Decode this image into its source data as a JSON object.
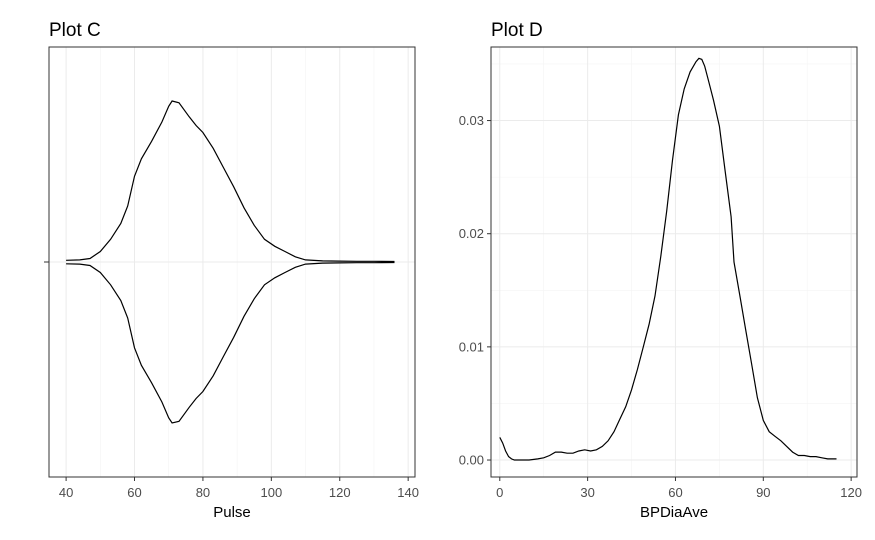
{
  "chart_data": [
    {
      "type": "violin",
      "title": "Plot C",
      "xlabel": "Pulse",
      "ylabel": "",
      "xlim": [
        35,
        142
      ],
      "xticks": [
        40,
        60,
        80,
        100,
        120,
        140
      ],
      "grid": true,
      "x": [
        40,
        44,
        47,
        50,
        53,
        56,
        58,
        60,
        62,
        65,
        68,
        70,
        71,
        73,
        76,
        78,
        80,
        83,
        86,
        89,
        92,
        95,
        98,
        101,
        104,
        107,
        110,
        115,
        120,
        125,
        130,
        136
      ],
      "y": [
        0.01,
        0.012,
        0.02,
        0.06,
        0.13,
        0.22,
        0.32,
        0.49,
        0.59,
        0.69,
        0.8,
        0.89,
        0.92,
        0.91,
        0.83,
        0.78,
        0.74,
        0.65,
        0.54,
        0.43,
        0.31,
        0.21,
        0.13,
        0.09,
        0.06,
        0.03,
        0.012,
        0.006,
        0.005,
        0.004,
        0.004,
        0.003
      ]
    },
    {
      "type": "line",
      "title": "Plot D",
      "xlabel": "BPDiaAve",
      "ylabel": "",
      "xlim": [
        -3,
        122
      ],
      "ylim": [
        -0.0015,
        0.0365
      ],
      "xticks": [
        0,
        30,
        60,
        90,
        120
      ],
      "yticks": [
        0.0,
        0.01,
        0.02,
        0.03
      ],
      "ytick_labels": [
        "0.00",
        "0.01",
        "0.02",
        "0.03"
      ],
      "grid": true,
      "x": [
        0,
        1,
        2,
        3,
        4,
        5,
        7,
        10,
        13,
        15,
        17,
        19,
        21,
        23,
        25,
        27,
        29,
        31,
        33,
        35,
        37,
        39,
        41,
        43,
        45,
        47,
        49,
        51,
        53,
        55,
        57,
        59,
        61,
        63,
        65,
        67,
        68,
        69,
        70,
        71,
        72,
        73,
        75,
        77,
        79,
        80,
        82,
        84,
        86,
        88,
        90,
        92,
        94,
        96,
        98,
        100,
        102,
        104,
        106,
        108,
        110,
        112,
        115
      ],
      "y": [
        0.002,
        0.0015,
        0.0008,
        0.0003,
        0.0001,
        0.0,
        0.0,
        0.0,
        0.0001,
        0.0002,
        0.0004,
        0.0007,
        0.0007,
        0.0006,
        0.0006,
        0.0008,
        0.0009,
        0.0008,
        0.0009,
        0.0012,
        0.0017,
        0.0025,
        0.0036,
        0.0047,
        0.0062,
        0.008,
        0.01,
        0.012,
        0.0145,
        0.018,
        0.022,
        0.0265,
        0.0305,
        0.0328,
        0.0343,
        0.0352,
        0.0355,
        0.0354,
        0.0348,
        0.0338,
        0.0328,
        0.0318,
        0.0295,
        0.0255,
        0.0215,
        0.0175,
        0.0145,
        0.0115,
        0.0085,
        0.0055,
        0.0035,
        0.0025,
        0.0021,
        0.0017,
        0.0012,
        0.0007,
        0.0004,
        0.0004,
        0.0003,
        0.0003,
        0.0002,
        0.0001,
        0.0001
      ]
    }
  ]
}
